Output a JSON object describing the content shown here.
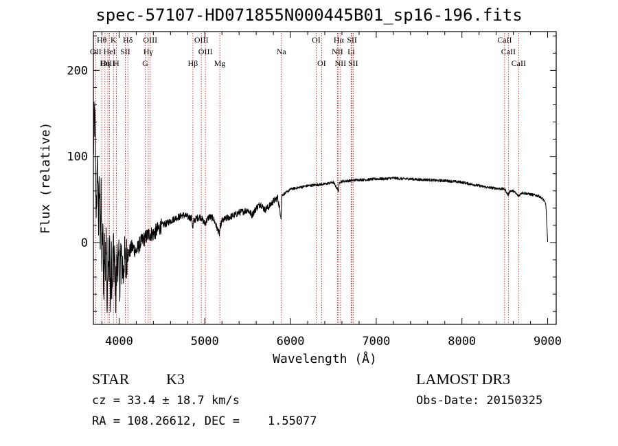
{
  "title": "spec-57107-HD071855N000445B01_sp16-196.fits",
  "info": {
    "class": "STAR",
    "subclass": "K3",
    "survey": "LAMOST DR3",
    "cz": "cz = 33.4 ± 18.7 km/s",
    "obs_date": "Obs-Date: 20150325",
    "ra_dec": "RA = 108.26612, DEC =    1.55077"
  },
  "colors": {
    "spectrum": "#000000",
    "line_markers": "#cc0000",
    "axes": "#000000"
  },
  "chart_data": {
    "type": "line",
    "title": "spec-57107-HD071855N000445B01_sp16-196.fits",
    "xlabel": "Wavelength (Å)",
    "ylabel": "Flux (relative)",
    "xlim": [
      3700,
      9100
    ],
    "ylim": [
      -95,
      245
    ],
    "xticks": [
      4000,
      5000,
      6000,
      7000,
      8000,
      9000
    ],
    "yticks": [
      0,
      100,
      200
    ],
    "grid": false,
    "series": [
      {
        "name": "flux",
        "x": [
          3700,
          3710,
          3720,
          3730,
          3740,
          3750,
          3760,
          3770,
          3780,
          3790,
          3800,
          3810,
          3820,
          3830,
          3840,
          3850,
          3860,
          3870,
          3880,
          3890,
          3900,
          3910,
          3920,
          3930,
          3940,
          3950,
          3960,
          3970,
          3980,
          3990,
          4000,
          4010,
          4020,
          4030,
          4040,
          4050,
          4060,
          4070,
          4080,
          4090,
          4100,
          4150,
          4200,
          4250,
          4300,
          4350,
          4400,
          4450,
          4500,
          4550,
          4600,
          4650,
          4700,
          4750,
          4800,
          4850,
          4860,
          4870,
          4900,
          4950,
          5000,
          5050,
          5100,
          5150,
          5170,
          5180,
          5200,
          5250,
          5300,
          5350,
          5400,
          5450,
          5500,
          5550,
          5600,
          5650,
          5700,
          5750,
          5800,
          5850,
          5890,
          5900,
          5950,
          6000,
          6100,
          6200,
          6300,
          6400,
          6500,
          6560,
          6570,
          6600,
          6700,
          6800,
          6900,
          7000,
          7100,
          7200,
          7300,
          7400,
          7500,
          7600,
          7700,
          7800,
          7900,
          8000,
          8100,
          8200,
          8300,
          8400,
          8500,
          8540,
          8560,
          8600,
          8660,
          8700,
          8800,
          8900,
          8950,
          8980,
          9000
        ],
        "y": [
          100,
          150,
          130,
          40,
          60,
          90,
          20,
          70,
          10,
          50,
          -30,
          20,
          -60,
          0,
          -40,
          30,
          -70,
          -10,
          -50,
          10,
          -80,
          -20,
          -60,
          0,
          -30,
          -20,
          -60,
          -40,
          -10,
          -30,
          -20,
          -50,
          -10,
          -30,
          -25,
          -40,
          -15,
          -20,
          -35,
          -10,
          -15,
          -5,
          -10,
          0,
          5,
          10,
          10,
          15,
          20,
          22,
          25,
          28,
          30,
          32,
          30,
          28,
          15,
          25,
          28,
          30,
          22,
          30,
          28,
          15,
          10,
          18,
          25,
          28,
          30,
          32,
          35,
          36,
          38,
          32,
          40,
          45,
          38,
          42,
          48,
          52,
          30,
          55,
          58,
          62,
          64,
          66,
          67,
          68,
          70,
          60,
          70,
          71,
          72,
          73,
          73,
          74,
          74,
          75,
          74,
          74,
          73,
          73,
          72,
          72,
          71,
          70,
          68,
          66,
          64,
          63,
          62,
          55,
          60,
          60,
          54,
          58,
          56,
          54,
          50,
          44,
          0
        ]
      }
    ],
    "line_markers": [
      {
        "label": "Hθ",
        "wavelength": 3798,
        "row": 1
      },
      {
        "label": "K",
        "wavelength": 3934,
        "row": 1
      },
      {
        "label": "Hδ",
        "wavelength": 4102,
        "row": 1
      },
      {
        "label": "OIII",
        "wavelength": 4363,
        "row": 1
      },
      {
        "label": "OIII",
        "wavelength": 4959,
        "row": 1
      },
      {
        "label": "OI",
        "wavelength": 6300,
        "row": 1
      },
      {
        "label": "Hα",
        "wavelength": 6563,
        "row": 1
      },
      {
        "label": "SII",
        "wavelength": 6717,
        "row": 1
      },
      {
        "label": "CaII",
        "wavelength": 8498,
        "row": 1
      },
      {
        "label": "OII",
        "wavelength": 3727,
        "row": 2
      },
      {
        "label": "HeI",
        "wavelength": 3889,
        "row": 2
      },
      {
        "label": "SII",
        "wavelength": 4072,
        "row": 2
      },
      {
        "label": "Hγ",
        "wavelength": 4340,
        "row": 2
      },
      {
        "label": "OIII",
        "wavelength": 5007,
        "row": 2
      },
      {
        "label": "Na",
        "wavelength": 5893,
        "row": 2
      },
      {
        "label": "NII",
        "wavelength": 6548,
        "row": 2
      },
      {
        "label": "Li",
        "wavelength": 6708,
        "row": 2
      },
      {
        "label": "CaII",
        "wavelength": 8542,
        "row": 2
      },
      {
        "label": "OIII",
        "wavelength": 3869,
        "row": 3
      },
      {
        "label": "Hη",
        "wavelength": 3835,
        "row": 3
      },
      {
        "label": "H",
        "wavelength": 3968,
        "row": 3
      },
      {
        "label": "G",
        "wavelength": 4305,
        "row": 3
      },
      {
        "label": "Hβ",
        "wavelength": 4861,
        "row": 3
      },
      {
        "label": "Mg",
        "wavelength": 5175,
        "row": 3
      },
      {
        "label": "OI",
        "wavelength": 6363,
        "row": 3
      },
      {
        "label": "NII",
        "wavelength": 6583,
        "row": 3
      },
      {
        "label": "SII",
        "wavelength": 6731,
        "row": 3
      },
      {
        "label": "CaII",
        "wavelength": 8662,
        "row": 3
      }
    ]
  }
}
